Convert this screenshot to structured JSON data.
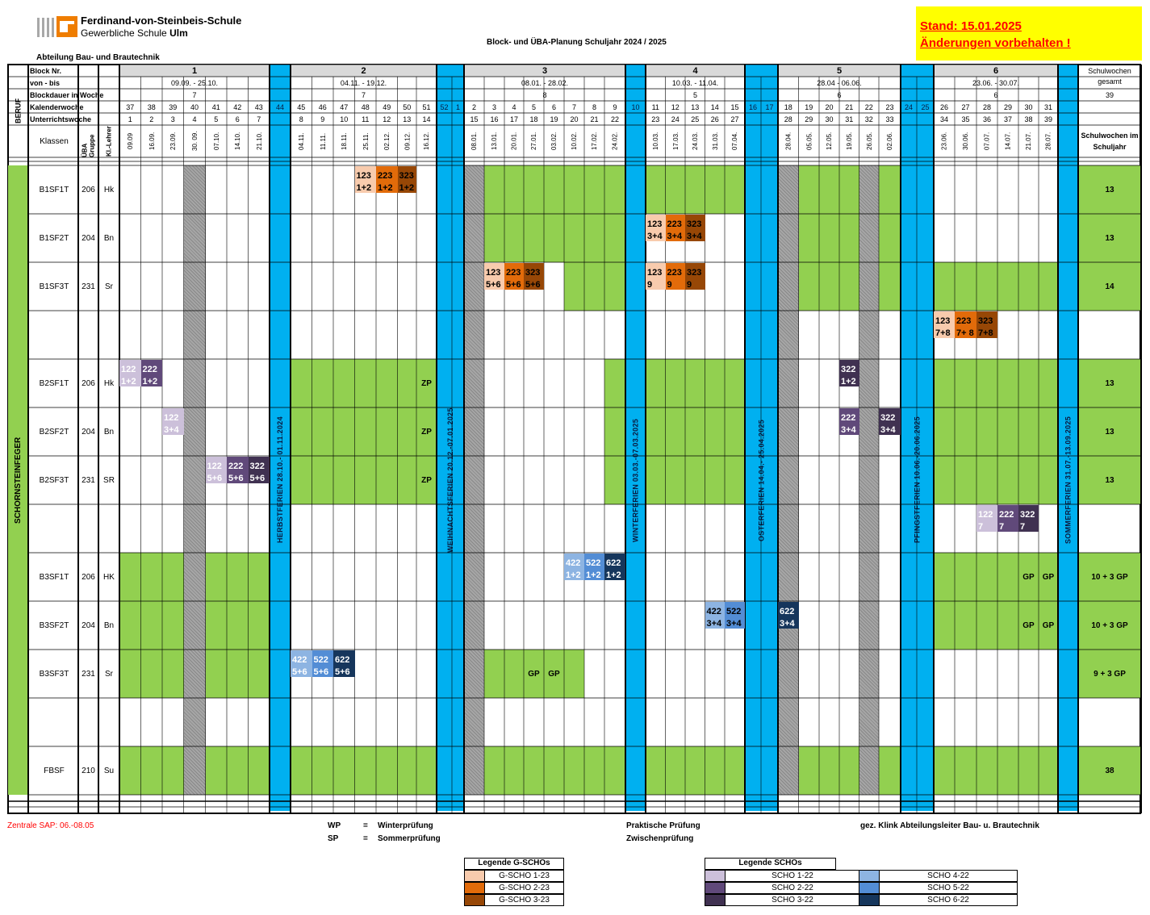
{
  "school": {
    "name": "Ferdinand-von-Steinbeis-Schule",
    "sub_prefix": "Gewerbliche Schule",
    "sub_city": "Ulm"
  },
  "title": "Block- und ÜBA-Planung Schuljahr 2024 / 2025",
  "stand": {
    "line1": "Stand: 15.01.2025",
    "line2": "Änderungen vorbehalten !"
  },
  "department": "Abteilung Bau- und Brautechnik",
  "header_labels": {
    "block_nr": "Block Nr.",
    "von_bis": "von - bis",
    "dauer": "Blockdauer in Woche",
    "kw": "Kalenderwoche",
    "uw": "Unterrichtswoche",
    "klassen": "Klassen",
    "uba": "ÜBA Gruppe",
    "kl": "Kl.-Lehrer",
    "beruf": "BERUF",
    "sw_gesamt": "Schulwochen gesamt",
    "sw_gesamt_val": "39",
    "sw_jahr": "Schulwochen im Schuljahr"
  },
  "colors": {
    "green": "#92d050",
    "blue_vac": "#00b0f0",
    "gray_hatch": "#a6a6a6",
    "gscho1": "#f8cbad",
    "gscho2": "#e26b0a",
    "gscho3": "#974706",
    "scho1": "#ccc0da",
    "scho2": "#60497a",
    "scho3": "#403151",
    "scho4": "#8db4e2",
    "scho5": "#538dd5",
    "scho6": "#16365c"
  },
  "blocks": [
    {
      "nr": "1",
      "range": "09.09. - 25.10.",
      "dauer": "7"
    },
    {
      "nr": "2",
      "range": "04.11.  -  19.12.",
      "dauer": "7"
    },
    {
      "nr": "3",
      "range": "08.01. - 28.02.",
      "dauer": "8"
    },
    {
      "nr": "4",
      "range": "10.03. - 11.04.",
      "dauer": "5"
    },
    {
      "nr": "5",
      "range": "28.04 - 06.06.",
      "dauer": "6"
    },
    {
      "nr": "6",
      "range": "23.06.  -  30.07.",
      "dauer": "6"
    }
  ],
  "weeks": [
    {
      "kw": "37",
      "uw": "1",
      "d": "09.09"
    },
    {
      "kw": "38",
      "uw": "2",
      "d": "16.09."
    },
    {
      "kw": "39",
      "uw": "3",
      "d": "23.09."
    },
    {
      "kw": "40",
      "uw": "4",
      "d": "30. 09."
    },
    {
      "kw": "41",
      "uw": "5",
      "d": "07.10."
    },
    {
      "kw": "42",
      "uw": "6",
      "d": "14.10."
    },
    {
      "kw": "43",
      "uw": "7",
      "d": "21.10."
    },
    {
      "kw": "44",
      "vac": true
    },
    {
      "kw": "45",
      "uw": "8",
      "d": "04.11."
    },
    {
      "kw": "46",
      "uw": "9",
      "d": "11.11."
    },
    {
      "kw": "47",
      "uw": "10",
      "d": "18.11."
    },
    {
      "kw": "48",
      "uw": "11",
      "d": "25.11."
    },
    {
      "kw": "49",
      "uw": "12",
      "d": "02.12."
    },
    {
      "kw": "50",
      "uw": "13",
      "d": "09.12."
    },
    {
      "kw": "51",
      "uw": "14",
      "d": "16.12."
    },
    {
      "kw": "52",
      "vac": true
    },
    {
      "kw": "1",
      "vac": true
    },
    {
      "kw": "2",
      "uw": "15",
      "d": "08.01."
    },
    {
      "kw": "3",
      "uw": "16",
      "d": "13.01."
    },
    {
      "kw": "4",
      "uw": "17",
      "d": "20.01."
    },
    {
      "kw": "5",
      "uw": "18",
      "d": "27.01."
    },
    {
      "kw": "6",
      "uw": "19",
      "d": "03.02."
    },
    {
      "kw": "7",
      "uw": "20",
      "d": "10.02."
    },
    {
      "kw": "8",
      "uw": "21",
      "d": "17.02."
    },
    {
      "kw": "9",
      "uw": "22",
      "d": "24.02."
    },
    {
      "kw": "10",
      "vac": true
    },
    {
      "kw": "11",
      "uw": "23",
      "d": "10.03."
    },
    {
      "kw": "12",
      "uw": "24",
      "d": "17.03."
    },
    {
      "kw": "13",
      "uw": "25",
      "d": "24.03."
    },
    {
      "kw": "14",
      "uw": "26",
      "d": "31.03."
    },
    {
      "kw": "15",
      "uw": "27",
      "d": "07.04."
    },
    {
      "kw": "16",
      "vac": true
    },
    {
      "kw": "17",
      "vac": true
    },
    {
      "kw": "18",
      "uw": "28",
      "d": "28.04."
    },
    {
      "kw": "19",
      "uw": "29",
      "d": "05.05."
    },
    {
      "kw": "20",
      "uw": "30",
      "d": "12.05."
    },
    {
      "kw": "21",
      "uw": "31",
      "d": "19.05."
    },
    {
      "kw": "22",
      "uw": "32",
      "d": "26.05."
    },
    {
      "kw": "23",
      "uw": "33",
      "d": "02.06."
    },
    {
      "kw": "24",
      "vac": true
    },
    {
      "kw": "25",
      "vac": true
    },
    {
      "kw": "26",
      "uw": "34",
      "d": "23.06."
    },
    {
      "kw": "27",
      "uw": "35",
      "d": "30.06."
    },
    {
      "kw": "28",
      "uw": "36",
      "d": "07.07."
    },
    {
      "kw": "29",
      "uw": "37",
      "d": "14.07."
    },
    {
      "kw": "30",
      "uw": "38",
      "d": "21.07."
    },
    {
      "kw": "31",
      "uw": "39",
      "d": "28.07."
    }
  ],
  "vacations": [
    "HERBSTFERIEN   28.10.- 01.11.2024",
    "WEIHNACHTSFERIEN  20.12.-07.01.2025",
    "WINTERFERIEN  03.03.-07.03.2025",
    "OSTERFERIEN  14.04.- 25.04.2025",
    "PFINGSTFERIEN  10.06.-20.06.2025",
    "SOMMERFERIEN  31.07.-13.09.2025"
  ],
  "beruf": "SCHORNSTEINFEGER",
  "rows": [
    {
      "klasse": "B1SF1T",
      "uba": "206",
      "kl": "Hk",
      "total": "13"
    },
    {
      "klasse": "B1SF2T",
      "uba": "204",
      "kl": "Bn",
      "total": "13"
    },
    {
      "klasse": "B1SF3T",
      "uba": "231",
      "kl": "Sr",
      "total": "14"
    },
    {
      "klasse": "",
      "uba": "",
      "kl": "",
      "total": ""
    },
    {
      "klasse": "B2SF1T",
      "uba": "206",
      "kl": "Hk",
      "total": "13"
    },
    {
      "klasse": "B2SF2T",
      "uba": "204",
      "kl": "Bn",
      "total": "13"
    },
    {
      "klasse": "B2SF3T",
      "uba": "231",
      "kl": "SR",
      "total": "13"
    },
    {
      "klasse": "",
      "uba": "",
      "kl": "",
      "total": ""
    },
    {
      "klasse": "B3SF1T",
      "uba": "206",
      "kl": "HK",
      "total": "10 + 3 GP"
    },
    {
      "klasse": "B3SF2T",
      "uba": "204",
      "kl": "Bn",
      "total": "10 + 3 GP"
    },
    {
      "klasse": "B3SF3T",
      "uba": "231",
      "kl": "Sr",
      "total": "9 + 3 GP"
    },
    {
      "klasse": "",
      "uba": "",
      "kl": "",
      "total": ""
    },
    {
      "klasse": "FBSF",
      "uba": "210",
      "kl": "Su",
      "total": "38"
    }
  ],
  "footer": {
    "sap": "Zentrale SAP: 06.-08.05",
    "wp": "WP",
    "wp_eq": "=",
    "wp_txt": "Winterprüfung",
    "sp": "SP",
    "sp_eq": "=",
    "sp_txt": "Sommerprüfung",
    "pp": "Praktische Prüfung",
    "zp": "Zwischenprüfung",
    "sign": "gez.  Klink  Abteilungsleiter Bau- u. Brautechnik"
  },
  "legend_g": {
    "title": "Legende G-SCHOs",
    "items": [
      "G-SCHO 1-23",
      "G-SCHO 2-23",
      "G-SCHO 3-23"
    ]
  },
  "legend_s": {
    "title": "Legende SCHOs",
    "items": [
      "SCHO 1-22",
      "SCHO 2-22",
      "SCHO 3-22",
      "SCHO 4-22",
      "SCHO 5-22",
      "SCHO 6-22"
    ]
  },
  "cells": {
    "c_b1_123": "123\n1+2",
    "c_b1_223": "223\n1+2",
    "c_b1_323": "323\n1+2",
    "c_b2_123": "123\n3+4",
    "c_b2_223": "223\n3+4",
    "c_b2_323": "323\n3+4",
    "c_b3_123a": "123\n5+6",
    "c_b3_223a": "223\n5+6",
    "c_b3_323a": "323\n5+6",
    "c_b3_123b": "123\n9",
    "c_b3_223b": "223\n9",
    "c_b3_323b": "323\n9",
    "c_b4_123": "123\n7+8",
    "c_b4_223": "223\n7+ 8",
    "c_b4_323": "323\n7+8",
    "c_r5_122": "122\n1+2",
    "c_r5_222": "222\n1+2",
    "c_r5_322": "322\n1+2",
    "c_r6_122": "122\n3+4",
    "c_r6_222": "222\n3+4",
    "c_r6_322": "322\n3+4",
    "c_r7_122": "122\n5+6",
    "c_r7_222": "222\n5+6",
    "c_r7_322": "322\n5+6",
    "c_r8_122": "122\n7",
    "c_r8_222": "222\n7",
    "c_r8_322": "322\n7",
    "c_r9_422": "422\n1+2",
    "c_r9_522": "522\n1+2",
    "c_r9_622": "622\n1+2",
    "c_r10_422": "422\n3+4",
    "c_r10_522": "522\n3+4",
    "c_r10_622": "622\n3+4",
    "c_r11_422": "422\n5+6",
    "c_r11_522": "522\n5+6",
    "c_r11_622": "622\n5+6",
    "zp": "ZP",
    "gp": "GP"
  }
}
